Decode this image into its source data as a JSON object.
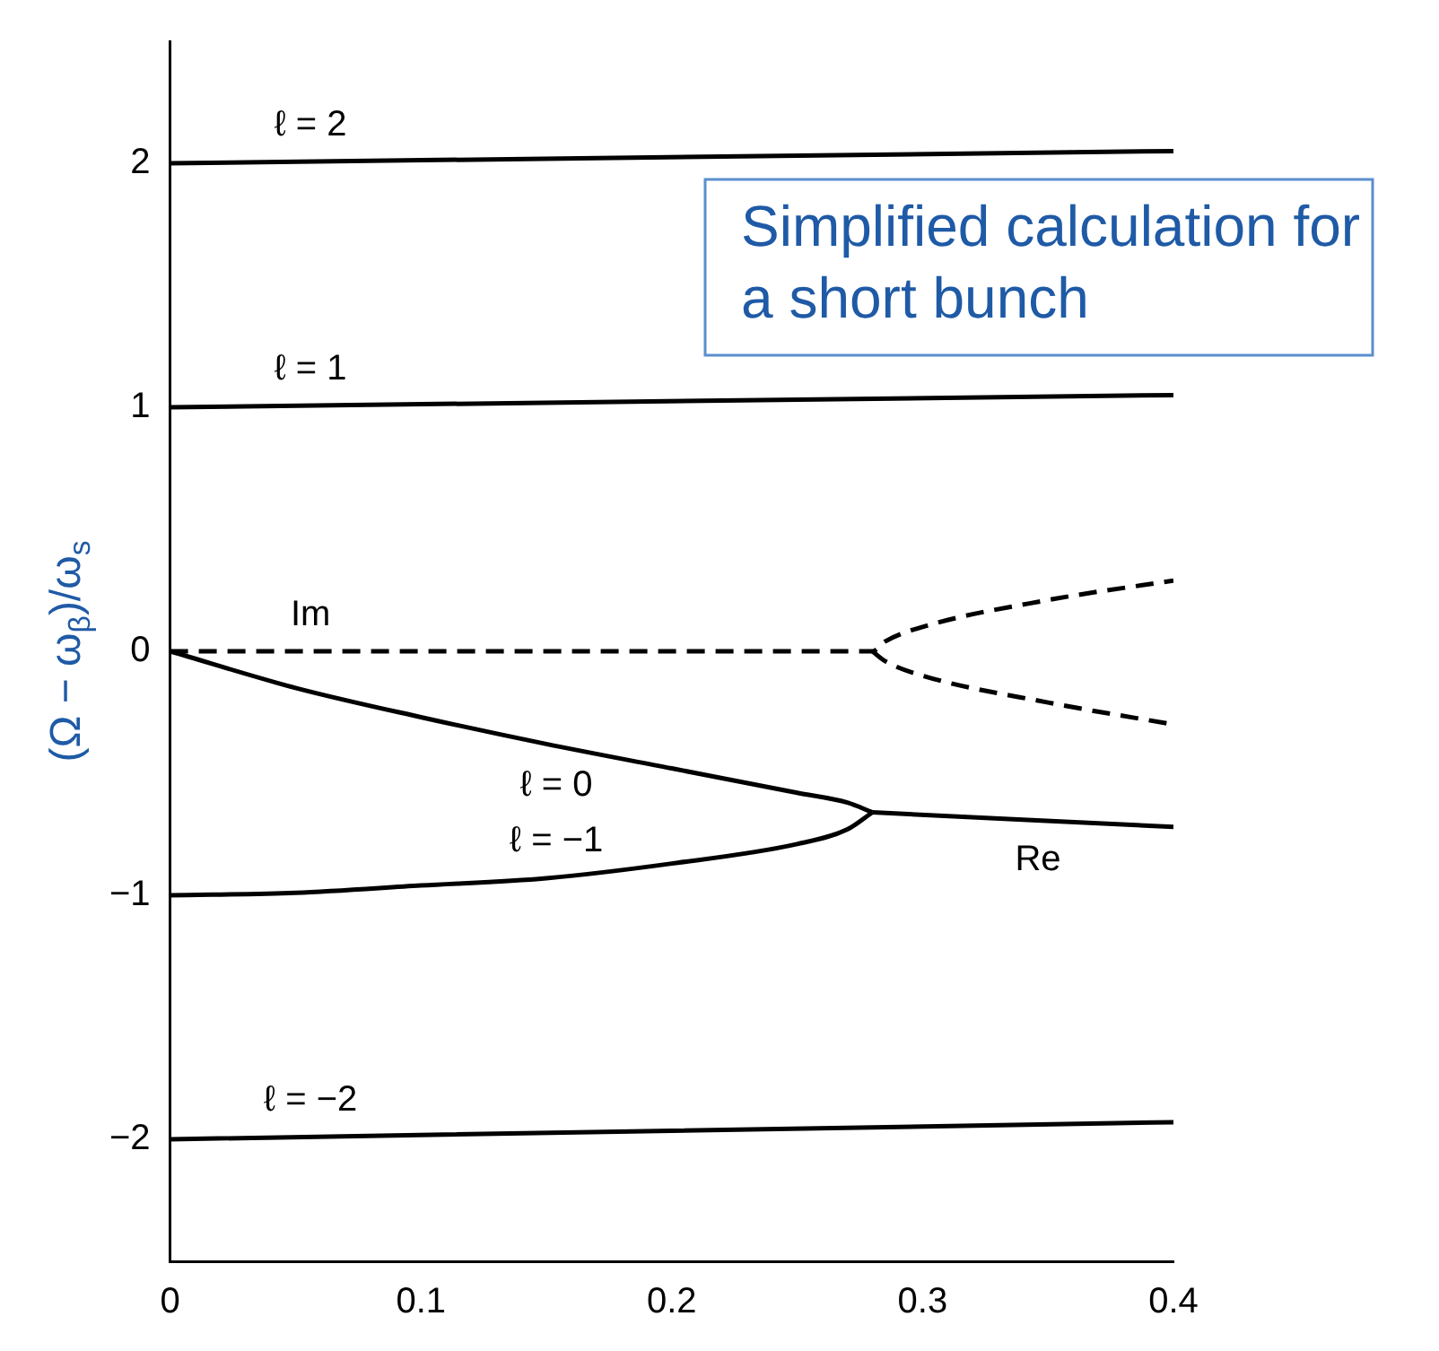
{
  "chart_data": {
    "type": "line",
    "ylabel": "(Ω − ω$_{β}$)/ω$_{s}$",
    "xlim": [
      0,
      0.4
    ],
    "xticks": [
      0,
      0.1,
      0.2,
      0.3,
      0.4
    ],
    "ylim": [
      -2.5,
      2.5
    ],
    "yticks": [
      -2,
      -1,
      0,
      1,
      2
    ],
    "grid": false,
    "legend": false,
    "marker": "none",
    "series": [
      {
        "name": "ℓ = 2",
        "color": "#000000",
        "x": [
          0,
          0.4
        ],
        "values": [
          2,
          2.05
        ]
      },
      {
        "name": "ℓ = 1",
        "color": "#000000",
        "x": [
          0,
          0.4
        ],
        "values": [
          1,
          1.05
        ]
      },
      {
        "name": "ℓ = 0",
        "color": "#000000",
        "x": [
          0,
          0.05,
          0.1,
          0.15,
          0.2,
          0.25,
          0.27,
          0.28
        ],
        "values": [
          0,
          -0.15,
          -0.27,
          -0.38,
          -0.48,
          -0.58,
          -0.62,
          -0.66
        ]
      },
      {
        "name": "ℓ = −1",
        "color": "#000000",
        "x": [
          0,
          0.05,
          0.1,
          0.15,
          0.2,
          0.25,
          0.27,
          0.28
        ],
        "values": [
          -1,
          -0.99,
          -0.96,
          -0.93,
          -0.87,
          -0.79,
          -0.73,
          -0.66
        ]
      },
      {
        "name": "Re",
        "color": "#000000",
        "x": [
          0.28,
          0.4
        ],
        "values": [
          -0.66,
          -0.72
        ]
      },
      {
        "name": "ℓ = −2",
        "color": "#000000",
        "x": [
          0,
          0.4
        ],
        "values": [
          -2,
          -1.93
        ]
      },
      {
        "name": "Im",
        "color": "#000000",
        "line_style": "dashed",
        "x": [
          0,
          0.28,
          0.285,
          0.3,
          0.35,
          0.4
        ],
        "values": [
          0,
          0,
          0.04,
          0.1,
          0.21,
          0.29
        ]
      },
      {
        "color": "#000000",
        "line_style": "dashed",
        "x": [
          0.28,
          0.285,
          0.3,
          0.35,
          0.4
        ],
        "values": [
          0,
          -0.04,
          -0.1,
          -0.21,
          -0.3
        ]
      }
    ],
    "annotations": [
      "Simplified calculation for a short bunch"
    ]
  }
}
